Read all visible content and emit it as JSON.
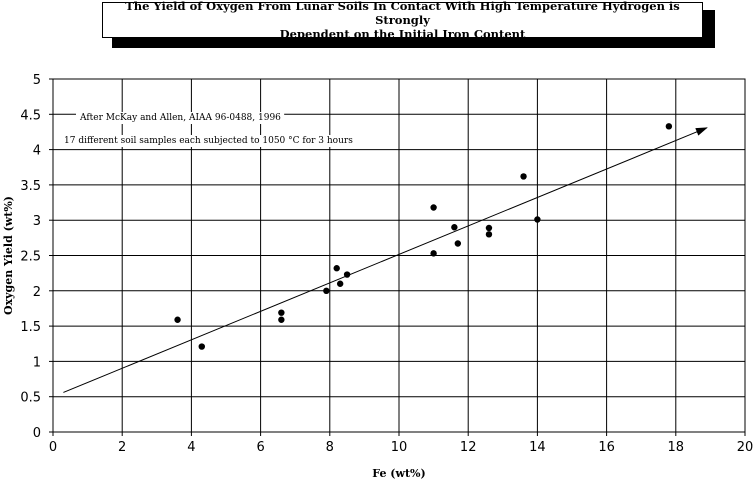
{
  "chart_data": {
    "type": "scatter",
    "title_line1": "The Yield of Oxygen From Lunar Soils In Contact With High Temperature Hydrogen is Strongly",
    "title_line2": "Dependent on the Initial Iron Content",
    "xlabel": "Fe (wt%)",
    "ylabel": "Oxygen Yield (wt%)",
    "xlim": [
      0,
      20
    ],
    "ylim": [
      0,
      5
    ],
    "xticks": [
      "0",
      "2",
      "4",
      "6",
      "8",
      "10",
      "12",
      "14",
      "16",
      "18",
      "20"
    ],
    "yticks": [
      "0",
      "0.5",
      "1",
      "1.5",
      "2",
      "2.5",
      "3",
      "3.5",
      "4",
      "4.5",
      "5"
    ],
    "grid": true,
    "annotations": [
      "After McKay and Allen, AIAA 96-0488, 1996",
      "17 different soil samples each subjected to 1050 °C for 3 hours"
    ],
    "points": [
      {
        "x": 3.6,
        "y": 1.59
      },
      {
        "x": 4.3,
        "y": 1.21
      },
      {
        "x": 6.6,
        "y": 1.69
      },
      {
        "x": 6.6,
        "y": 1.59
      },
      {
        "x": 7.9,
        "y": 2.0
      },
      {
        "x": 8.2,
        "y": 2.32
      },
      {
        "x": 8.3,
        "y": 2.1
      },
      {
        "x": 8.5,
        "y": 2.23
      },
      {
        "x": 11.0,
        "y": 3.18
      },
      {
        "x": 11.0,
        "y": 2.53
      },
      {
        "x": 11.6,
        "y": 2.9
      },
      {
        "x": 11.7,
        "y": 2.67
      },
      {
        "x": 12.6,
        "y": 2.89
      },
      {
        "x": 12.6,
        "y": 2.8
      },
      {
        "x": 13.6,
        "y": 3.62
      },
      {
        "x": 14.0,
        "y": 3.01
      },
      {
        "x": 17.8,
        "y": 4.33
      }
    ],
    "trendline": {
      "x": [
        0.3,
        18.9
      ],
      "y": [
        0.56,
        4.31
      ]
    }
  }
}
